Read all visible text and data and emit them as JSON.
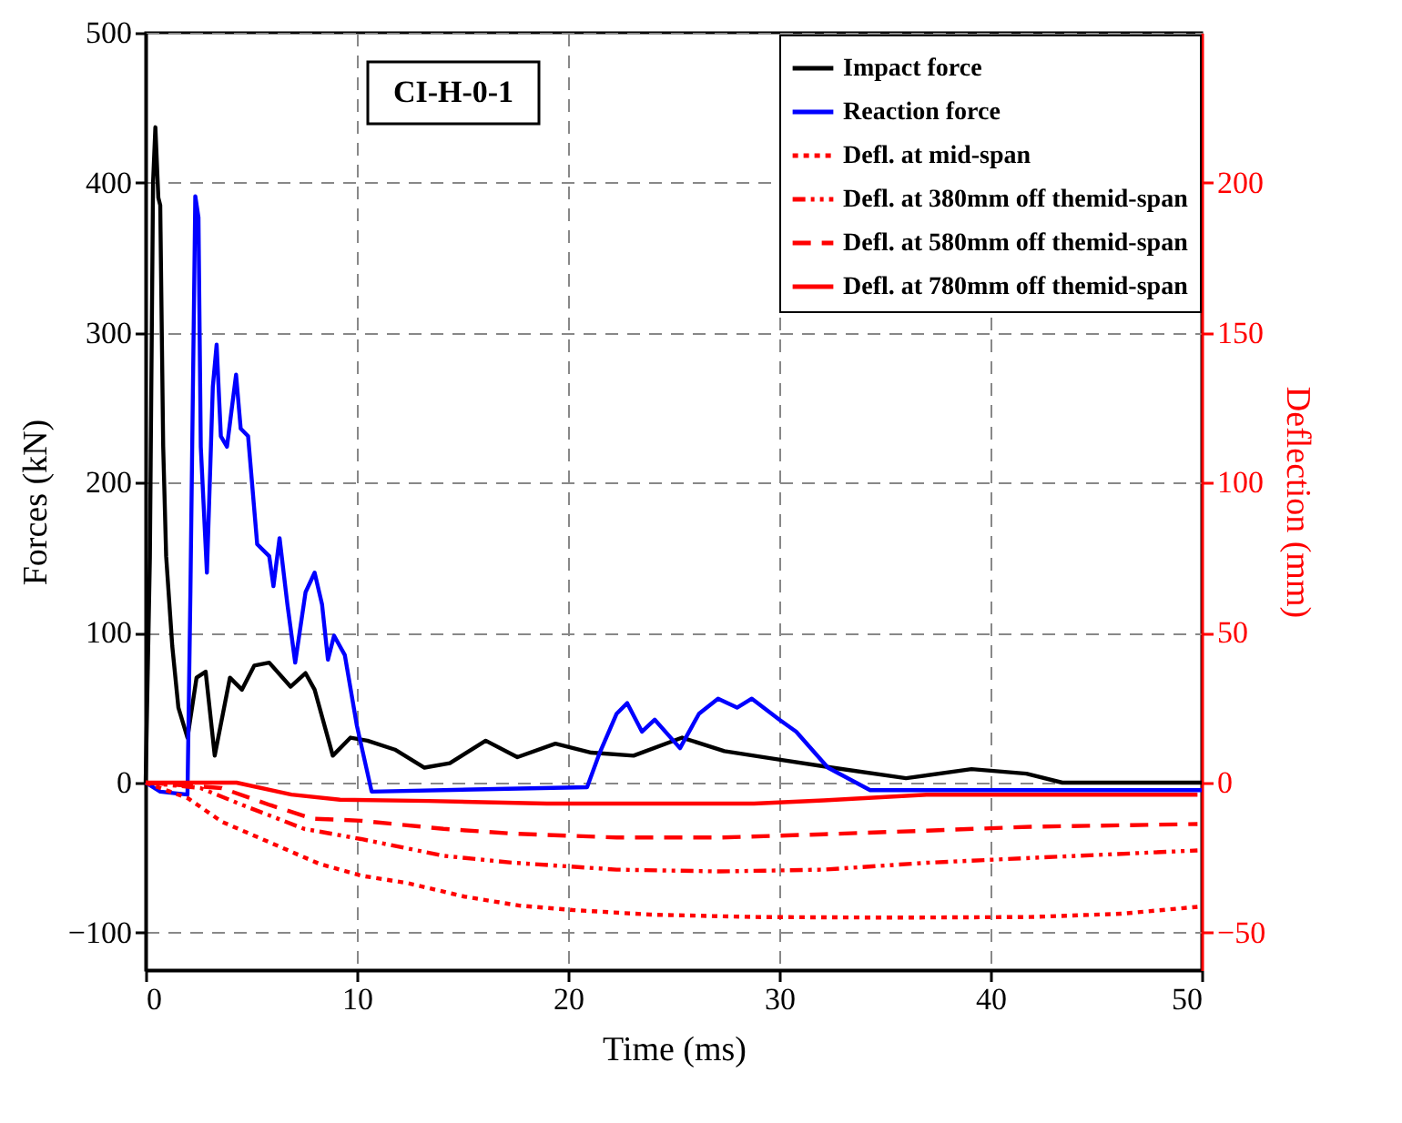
{
  "chart_data": {
    "type": "line",
    "xlabel": "Time (ms)",
    "ylabel": "Forces (kN)",
    "y2label": "Deflection (mm)",
    "annotations": [
      "CI-H-0-1"
    ],
    "xlim": [
      0,
      50
    ],
    "xticks": [
      0,
      10,
      20,
      30,
      40,
      50
    ],
    "ylim": [
      -125,
      500
    ],
    "yticks": [
      -100,
      0,
      100,
      200,
      300,
      400,
      500
    ],
    "y2lim": [
      -62.5,
      250
    ],
    "y2ticks": [
      -50,
      0,
      50,
      100,
      150,
      200
    ],
    "grid": true,
    "legend": "top right",
    "marker": "none",
    "series": [
      {
        "name": "Impact force",
        "color": "#000000",
        "line_style": "solid",
        "x": [
          0,
          0.2,
          0.35,
          0.46,
          0.6,
          0.69,
          0.83,
          0.97,
          1.26,
          1.55,
          1.98,
          2.41,
          2.84,
          3.27,
          3.99,
          4.56,
          5.14,
          5.85,
          6.86,
          7.57,
          8,
          8.86,
          9.7,
          10.5,
          11.8,
          13.2,
          14.4,
          16.1,
          17.6,
          19.4,
          21.1,
          23.1,
          25.4,
          27.4,
          29.7,
          32.5,
          36,
          39.1,
          41.7,
          43.4,
          50
        ],
        "values": [
          0,
          150,
          400,
          437,
          390,
          385,
          224,
          151,
          91,
          50,
          30,
          70,
          74,
          18,
          70,
          62,
          78,
          80,
          64,
          73,
          62,
          18,
          30,
          28,
          22,
          10,
          13,
          28,
          17,
          26,
          20,
          18,
          30,
          21,
          16,
          10,
          3,
          9,
          6,
          0,
          0
        ]
      },
      {
        "name": "Reaction force",
        "color": "#0000ff",
        "line_style": "solid",
        "x": [
          0,
          0.69,
          1.98,
          2.12,
          2.26,
          2.35,
          2.5,
          2.61,
          2.9,
          3.18,
          3.36,
          3.56,
          3.85,
          4.28,
          4.5,
          4.85,
          5.28,
          5.85,
          6.05,
          6.34,
          6.71,
          7.08,
          7.57,
          8,
          8.35,
          8.63,
          8.92,
          9.43,
          10,
          10.7,
          20.9,
          21.5,
          22.3,
          22.8,
          23.5,
          24.1,
          25.3,
          26.2,
          27.1,
          28,
          28.7,
          30,
          30.8,
          32.3,
          34.3,
          50
        ],
        "values": [
          0,
          -6,
          -8,
          128,
          288,
          391,
          377,
          224,
          140,
          264,
          292,
          231,
          224,
          272,
          236,
          231,
          159,
          151,
          131,
          163,
          119,
          80,
          127,
          140,
          119,
          82,
          98,
          85,
          38,
          -6,
          -3,
          20,
          46,
          53,
          34,
          42,
          23,
          46,
          56,
          50,
          56,
          42,
          34,
          10,
          -5,
          -5
        ]
      },
      {
        "name": "Defl. at mid-span",
        "color": "#ff0000",
        "line_style": "dotted",
        "axis": "y2",
        "x": [
          0,
          2,
          3.6,
          5.9,
          8.2,
          10.2,
          12.4,
          15.1,
          17.7,
          20.3,
          23.9,
          28.8,
          35.4,
          41.9,
          46.2,
          49.8
        ],
        "values": [
          0,
          -5.2,
          -13,
          -20,
          -27,
          -31,
          -33.5,
          -38,
          -41,
          -42.5,
          -44,
          -44.8,
          -45,
          -44.8,
          -43.7,
          -41.4
        ]
      },
      {
        "name": "Defl. at 380mm off themid-span",
        "color": "#ff0000",
        "line_style": "dashdotdot",
        "axis": "y2",
        "x": [
          0,
          2.6,
          4.6,
          7.5,
          10.2,
          14.1,
          17.4,
          22.3,
          27.2,
          32.1,
          37,
          41.9,
          49.8
        ],
        "values": [
          0,
          -1.8,
          -7.5,
          -15.4,
          -18.8,
          -24.4,
          -26.7,
          -29,
          -29.6,
          -29,
          -26.7,
          -25.1,
          -22.6
        ]
      },
      {
        "name": "Defl. at 580mm off themid-span",
        "color": "#ff0000",
        "line_style": "dashed",
        "axis": "y2",
        "x": [
          0,
          3.6,
          5.9,
          7.9,
          10.2,
          14.1,
          17.4,
          22.3,
          27.2,
          32.1,
          37,
          41.9,
          49.8
        ],
        "values": [
          0,
          -1.8,
          -7.5,
          -12,
          -12.7,
          -15.4,
          -17,
          -18.3,
          -18.3,
          -17.2,
          -16,
          -14.7,
          -13.8
        ]
      },
      {
        "name": "Defl. at 780mm off themid-span",
        "color": "#ff0000",
        "line_style": "solid",
        "axis": "y2",
        "x": [
          0,
          4.3,
          6.9,
          9.2,
          13.4,
          19,
          28.8,
          32.1,
          37,
          49.8
        ],
        "values": [
          0,
          0,
          -4,
          -5.7,
          -6.1,
          -7,
          -7,
          -5.9,
          -4,
          -4
        ]
      }
    ]
  }
}
